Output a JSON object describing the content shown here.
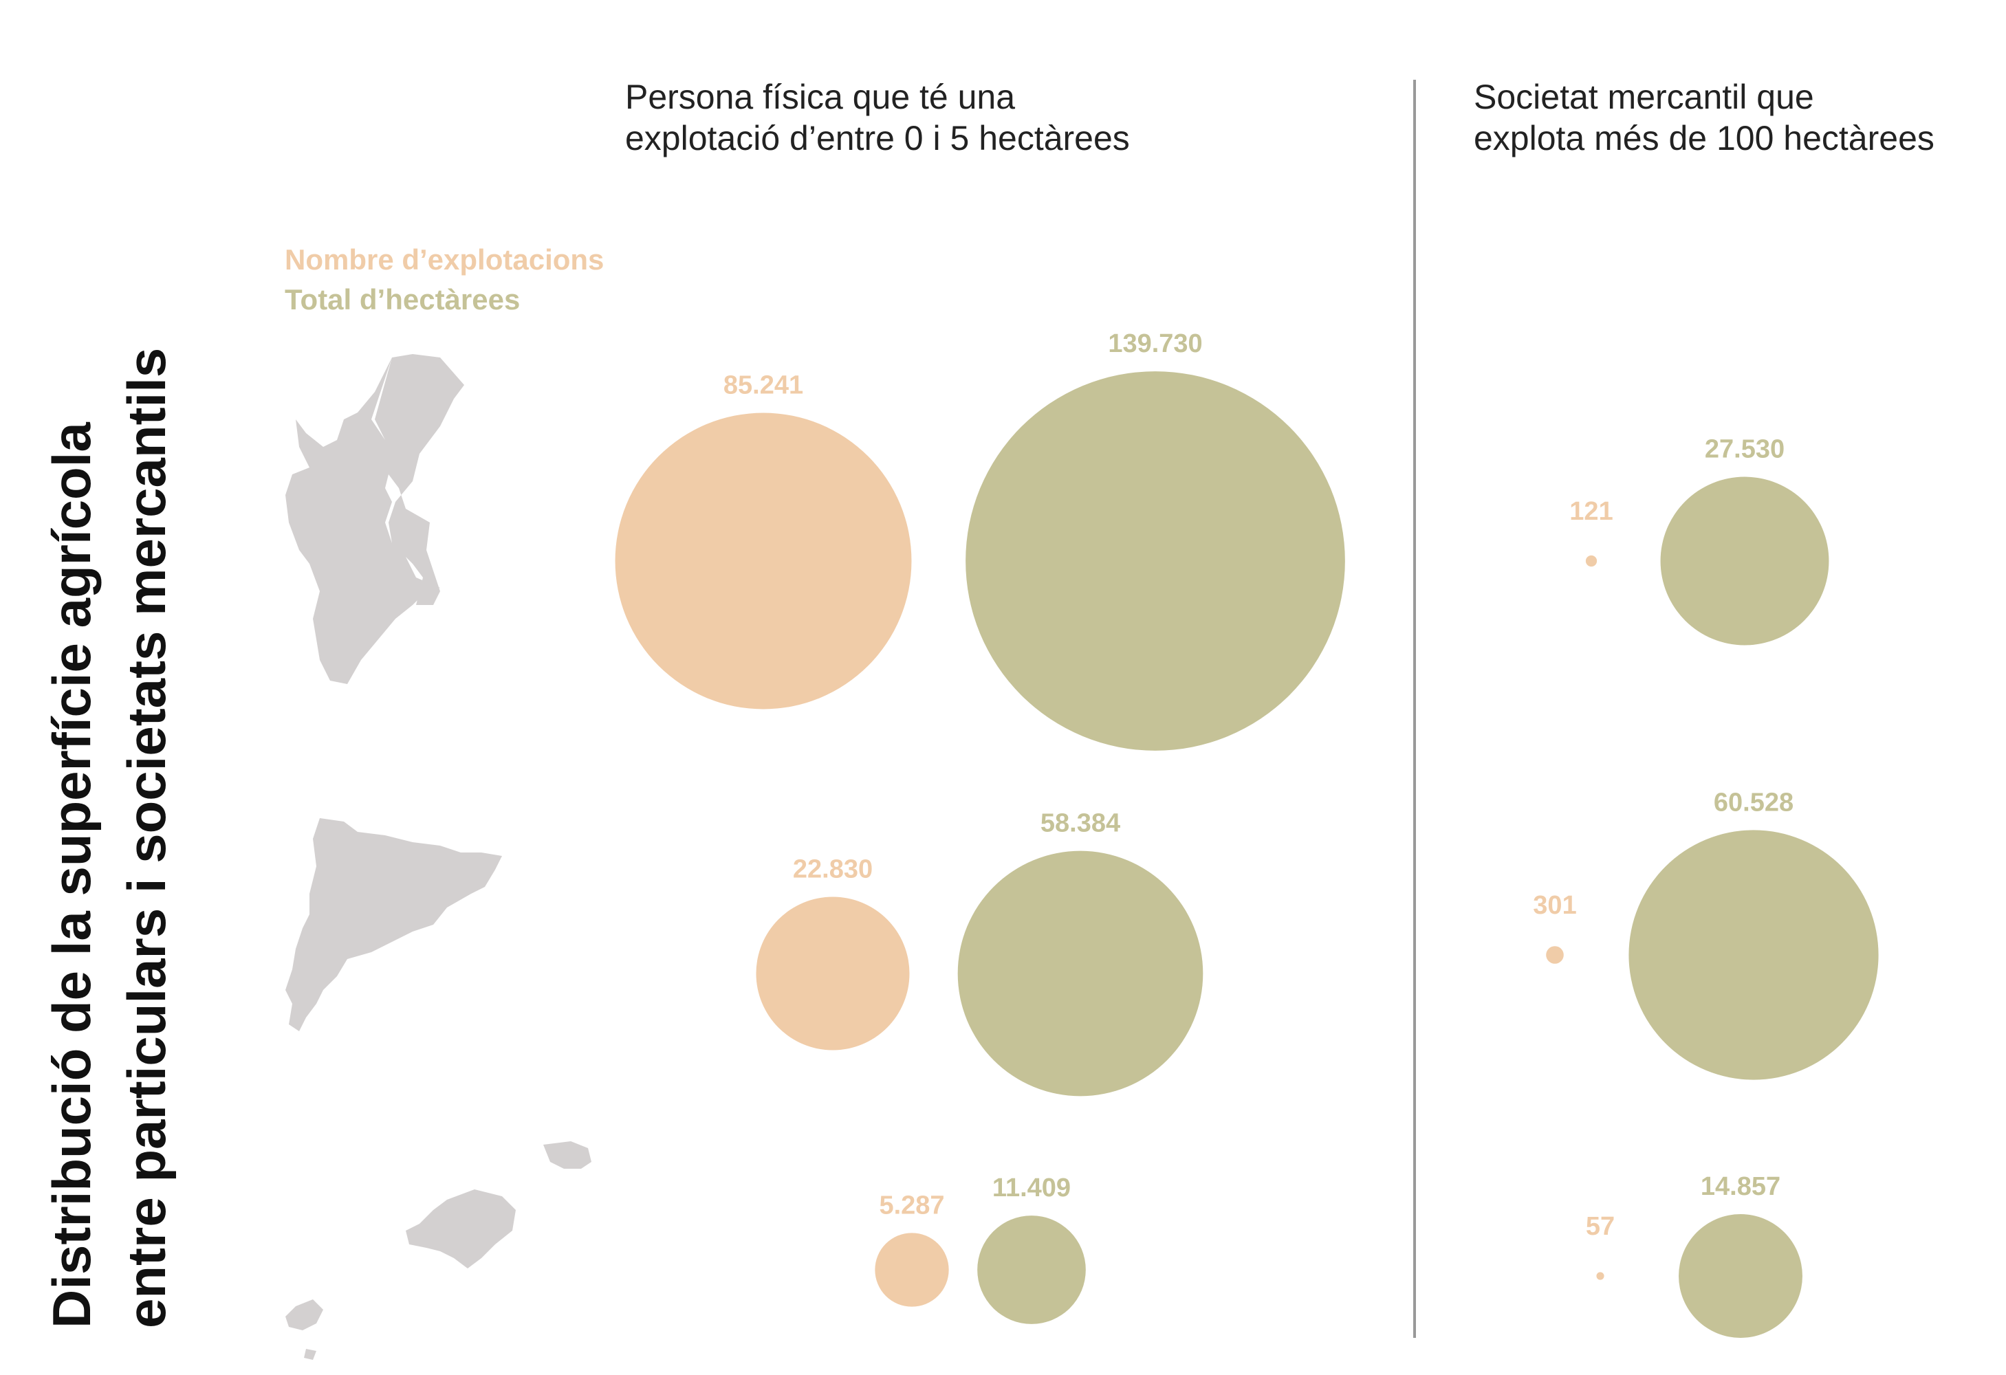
{
  "chart_data": {
    "type": "bubble",
    "title": [
      "Distribució de la superfície agrícola",
      "entre particulars i societats mercantils"
    ],
    "groups": [
      [
        "Persona física que té una",
        "explotació d’entre 0 i 5 hectàrees"
      ],
      [
        "Societat mercantil que",
        "explota més de 100 hectàrees"
      ]
    ],
    "series": [
      {
        "name": "Nombre d’explotacions",
        "color": "#f0cca8",
        "values": [
          [
            85241,
            22830,
            5287
          ],
          [
            121,
            301,
            57
          ]
        ],
        "value_labels": [
          [
            "85.241",
            "22.830",
            "5.287"
          ],
          [
            "121",
            "301",
            "57"
          ]
        ]
      },
      {
        "name": "Total d’hectàrees",
        "color": "#c5c297",
        "values": [
          [
            139730,
            58384,
            11409
          ],
          [
            27530,
            60528,
            14857
          ]
        ],
        "value_labels": [
          [
            "139.730",
            "58.384",
            "11.409"
          ],
          [
            "27.530",
            "60.528",
            "14.857"
          ]
        ]
      }
    ]
  }
}
